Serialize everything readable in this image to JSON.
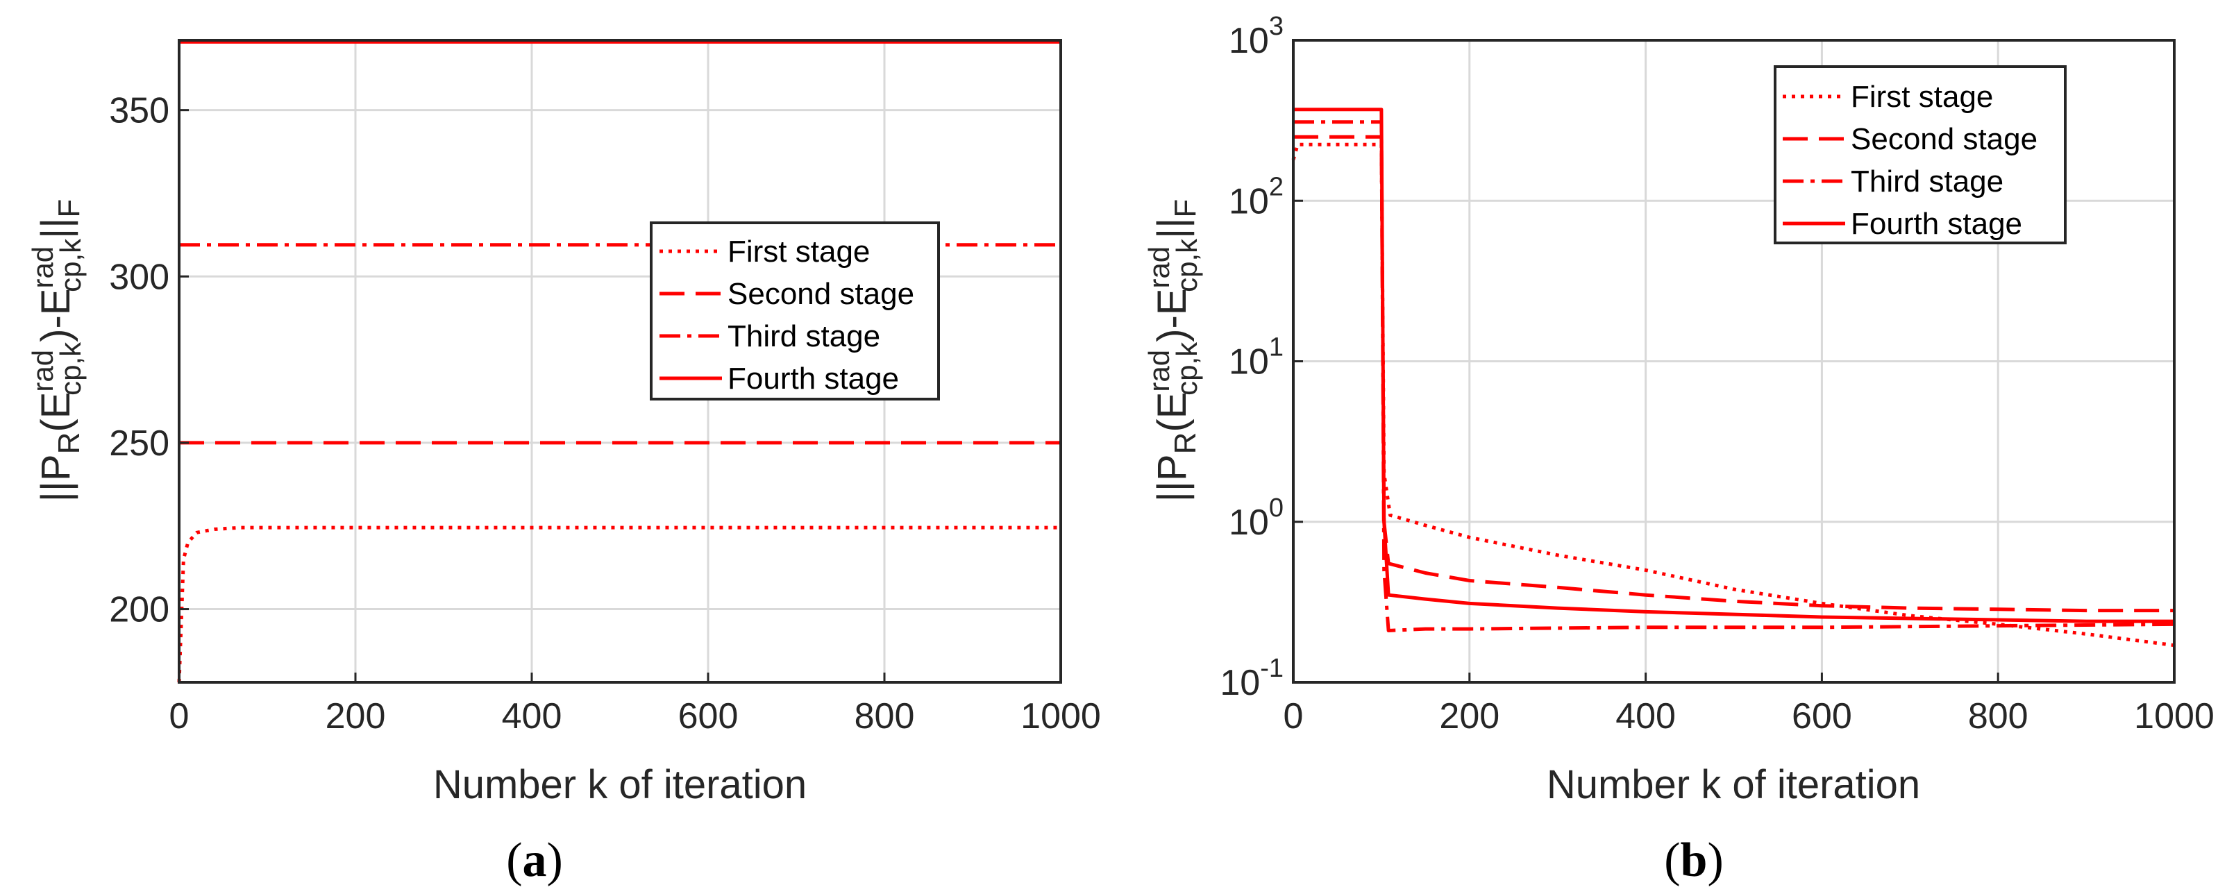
{
  "figure": {
    "accent_color": "#ff0000"
  },
  "chart_data": [
    {
      "type": "line",
      "panel_label": {
        "open": "(",
        "letter": "a",
        "close": ")"
      },
      "xlabel": "Number k of iteration",
      "ylabel": {
        "norm_left": "||P",
        "sub_R": "R",
        "open_paren": "(E",
        "sup1": "rad",
        "sub1": "cp,k",
        "mid": ")-E",
        "sup2": "rad",
        "sub2": "cp,k",
        "norm_right": "||",
        "sub_F": "F"
      },
      "xlim": [
        0,
        1000
      ],
      "ylim": [
        178,
        371
      ],
      "xticks": [
        0,
        200,
        400,
        600,
        800,
        1000
      ],
      "xtick_labels": [
        "0",
        "200",
        "400",
        "600",
        "800",
        "1000"
      ],
      "yticks": [
        200,
        250,
        300,
        350
      ],
      "ytick_labels": [
        "200",
        "250",
        "300",
        "350"
      ],
      "grid": true,
      "legend_position": "center-right",
      "series": [
        {
          "name": "First stage",
          "style": "dotted",
          "x": [
            0,
            5,
            10,
            20,
            40,
            70,
            100,
            1000
          ],
          "y": [
            178,
            215,
            220,
            223,
            224,
            224.5,
            224.5,
            224.5
          ]
        },
        {
          "name": "Second stage",
          "style": "dashed",
          "x": [
            0,
            1000
          ],
          "y": [
            250,
            250
          ]
        },
        {
          "name": "Third stage",
          "style": "dashdot",
          "x": [
            0,
            1000
          ],
          "y": [
            309.5,
            309.5
          ]
        },
        {
          "name": "Fourth stage",
          "style": "solid",
          "x": [
            0,
            1000
          ],
          "y": [
            370.5,
            370.5
          ]
        }
      ]
    },
    {
      "type": "line",
      "yscale": "log",
      "panel_label": {
        "open": "(",
        "letter": "b",
        "close": ")"
      },
      "xlabel": "Number k of iteration",
      "ylabel": {
        "norm_left": "||P",
        "sub_R": "R",
        "open_paren": "(E",
        "sup1": "rad",
        "sub1": "cp,k",
        "mid": ")-E",
        "sup2": "rad",
        "sub2": "cp,k",
        "norm_right": "||",
        "sub_F": "F"
      },
      "xlim": [
        0,
        1000
      ],
      "ylim": [
        0.1,
        1000
      ],
      "xticks": [
        0,
        200,
        400,
        600,
        800,
        1000
      ],
      "xtick_labels": [
        "0",
        "200",
        "400",
        "600",
        "800",
        "1000"
      ],
      "yticks": [
        0.1,
        1,
        10,
        100,
        1000
      ],
      "ytick_labels": [
        {
          "base": "10",
          "exp": "-1"
        },
        {
          "base": "10",
          "exp": "0"
        },
        {
          "base": "10",
          "exp": "1"
        },
        {
          "base": "10",
          "exp": "2"
        },
        {
          "base": "10",
          "exp": "3"
        }
      ],
      "grid": true,
      "legend_position": "top-right",
      "series": [
        {
          "name": "First stage",
          "style": "dotted",
          "x": [
            0,
            5,
            100,
            103,
            110,
            150,
            200,
            300,
            400,
            500,
            600,
            700,
            800,
            900,
            1000
          ],
          "y": [
            180,
            224,
            224,
            2.0,
            1.1,
            0.95,
            0.8,
            0.62,
            0.5,
            0.38,
            0.31,
            0.26,
            0.23,
            0.2,
            0.17
          ]
        },
        {
          "name": "Second stage",
          "style": "dashed",
          "x": [
            0,
            100,
            103,
            108,
            150,
            200,
            300,
            400,
            500,
            600,
            700,
            800,
            900,
            1000
          ],
          "y": [
            250,
            250,
            1.0,
            0.55,
            0.48,
            0.43,
            0.39,
            0.35,
            0.32,
            0.3,
            0.29,
            0.285,
            0.28,
            0.28
          ]
        },
        {
          "name": "Third stage",
          "style": "dashdot",
          "x": [
            0,
            100,
            103,
            108,
            150,
            200,
            400,
            600,
            800,
            1000
          ],
          "y": [
            309.5,
            309.5,
            0.5,
            0.21,
            0.215,
            0.215,
            0.22,
            0.22,
            0.225,
            0.23
          ]
        },
        {
          "name": "Fourth stage",
          "style": "solid",
          "x": [
            0,
            100,
            103,
            108,
            150,
            200,
            300,
            400,
            500,
            600,
            700,
            800,
            900,
            1000
          ],
          "y": [
            370.5,
            370.5,
            1.0,
            0.35,
            0.33,
            0.31,
            0.29,
            0.275,
            0.265,
            0.255,
            0.25,
            0.245,
            0.24,
            0.24
          ]
        }
      ]
    }
  ]
}
